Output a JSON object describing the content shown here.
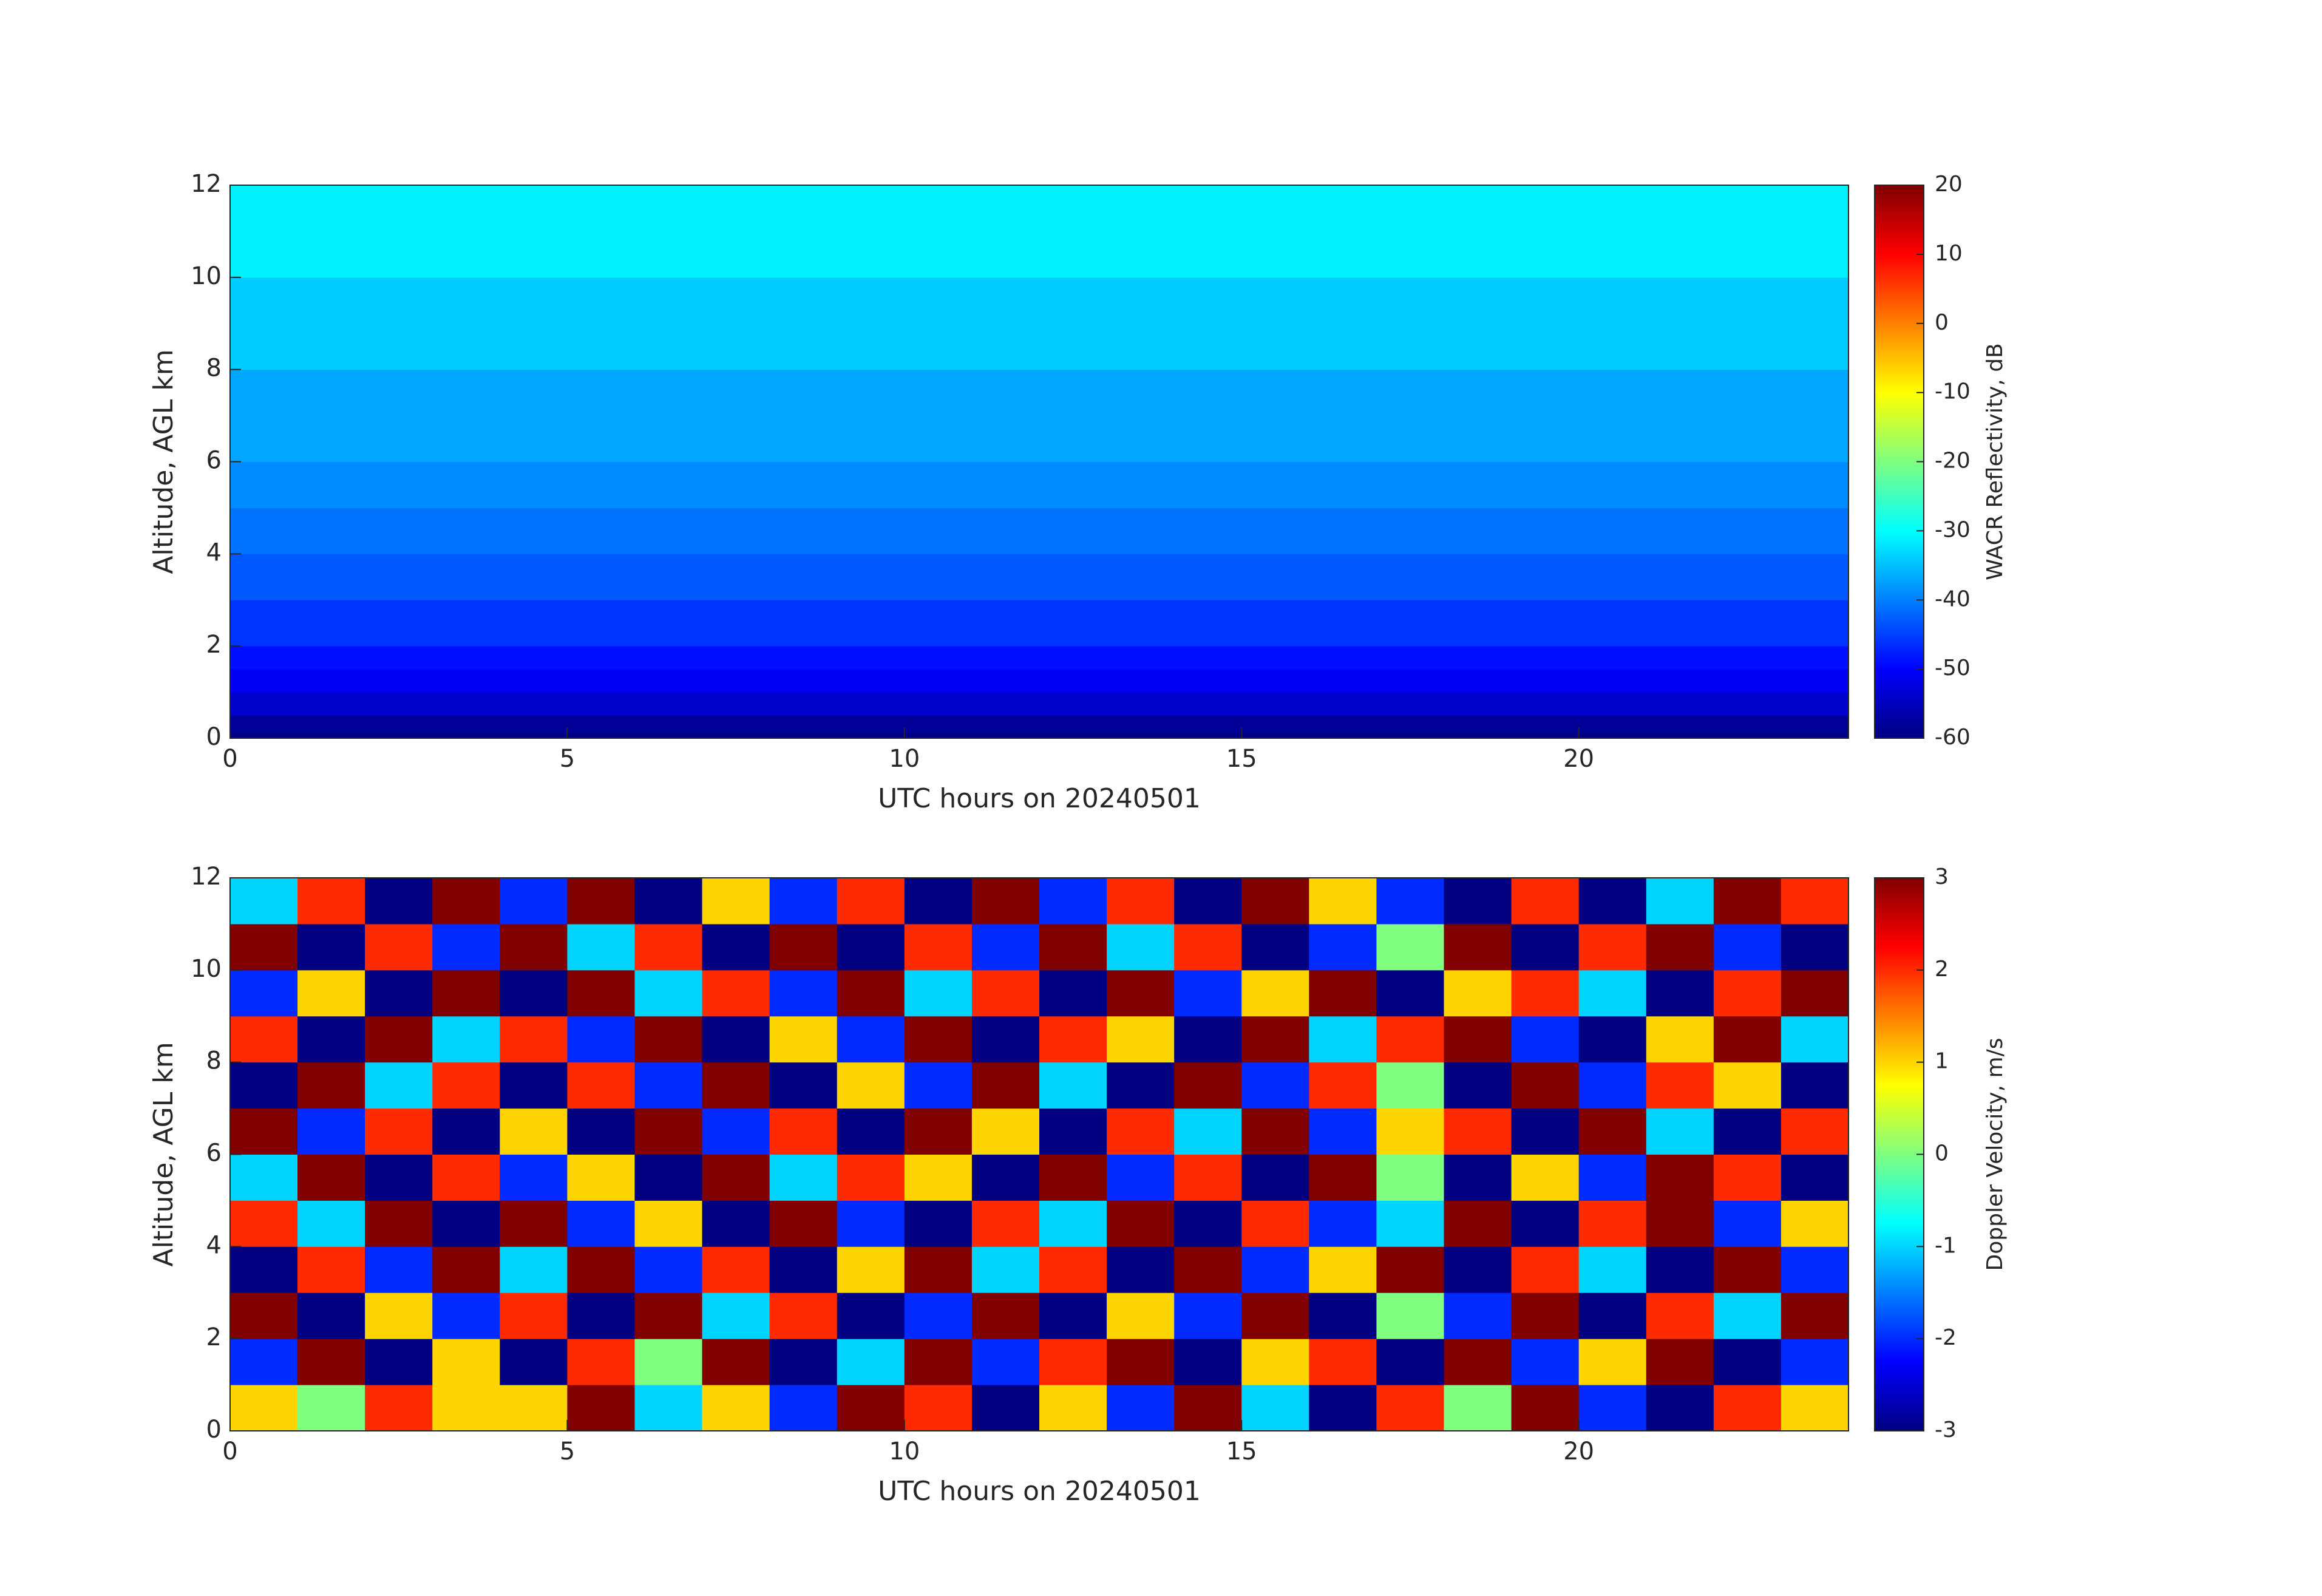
{
  "chart_data": [
    {
      "type": "heatmap",
      "colormap": "jet",
      "xlabel": "UTC hours on 20240501",
      "ylabel": "Altitude, AGL km",
      "xlim": [
        0,
        24
      ],
      "xticks": [
        0,
        5,
        10,
        15,
        20
      ],
      "ylim": [
        0,
        12
      ],
      "yticks": [
        0,
        2,
        4,
        6,
        8,
        10,
        12
      ],
      "x": [
        0,
        24
      ],
      "y": [
        0,
        0.12,
        0.5,
        1,
        1.5,
        2,
        3,
        4,
        5,
        6,
        8,
        10,
        12
      ],
      "values": [
        [
          -60
        ],
        [
          -58
        ],
        [
          -54
        ],
        [
          -51
        ],
        [
          -49
        ],
        [
          -46
        ],
        [
          -43
        ],
        [
          -41
        ],
        [
          -39
        ],
        [
          -37
        ],
        [
          -34
        ],
        [
          -31
        ]
      ],
      "colorbar": {
        "label": "WACR Reflectivity, dB",
        "clim": [
          -60,
          20
        ],
        "ticks": [
          -60,
          -50,
          -40,
          -30,
          -20,
          -10,
          0,
          10,
          20
        ]
      }
    },
    {
      "type": "heatmap",
      "colormap": "jet",
      "xlabel": "UTC hours on 20240501",
      "ylabel": "Altitude, AGL km",
      "xlim": [
        0,
        24
      ],
      "xticks": [
        0,
        5,
        10,
        15,
        20
      ],
      "ylim": [
        0,
        12
      ],
      "yticks": [
        0,
        2,
        4,
        6,
        8,
        10,
        12
      ],
      "x": [
        0,
        1,
        2,
        3,
        4,
        5,
        6,
        7,
        8,
        9,
        10,
        11,
        12,
        13,
        14,
        15,
        16,
        17,
        18,
        19,
        20,
        21,
        22,
        23,
        24
      ],
      "y": [
        0,
        1,
        2,
        3,
        4,
        5,
        6,
        7,
        8,
        9,
        10,
        11,
        12
      ],
      "values": [
        [
          1,
          0,
          2,
          1,
          1,
          3,
          -1,
          1,
          -2,
          3,
          2,
          -3,
          1,
          -2,
          3,
          -1,
          -3,
          2,
          0,
          3,
          -2,
          -3,
          2,
          1
        ],
        [
          -2,
          3,
          -3,
          1,
          -3,
          2,
          0,
          3,
          -3,
          -1,
          3,
          -2,
          2,
          3,
          -3,
          1,
          2,
          -3,
          3,
          -2,
          1,
          3,
          -3,
          -2
        ],
        [
          3,
          -3,
          1,
          -2,
          2,
          -3,
          3,
          -1,
          2,
          -3,
          -2,
          3,
          -3,
          1,
          -2,
          3,
          -3,
          0,
          -2,
          3,
          -3,
          2,
          -1,
          3
        ],
        [
          -3,
          2,
          -2,
          3,
          -1,
          3,
          -2,
          2,
          -3,
          1,
          3,
          -1,
          2,
          -3,
          3,
          -2,
          1,
          3,
          -3,
          2,
          -1,
          -3,
          3,
          -2
        ],
        [
          2,
          -1,
          3,
          -3,
          3,
          -2,
          1,
          -3,
          3,
          -2,
          -3,
          2,
          -1,
          3,
          -3,
          2,
          -2,
          -1,
          3,
          -3,
          2,
          3,
          -2,
          1
        ],
        [
          -1,
          3,
          -3,
          2,
          -2,
          1,
          -3,
          3,
          -1,
          2,
          1,
          -3,
          3,
          -2,
          2,
          -3,
          3,
          0,
          -3,
          1,
          -2,
          3,
          2,
          -3
        ],
        [
          3,
          -2,
          2,
          -3,
          1,
          -3,
          3,
          -2,
          2,
          -3,
          3,
          1,
          -3,
          2,
          -1,
          3,
          -2,
          1,
          2,
          -3,
          3,
          -1,
          -3,
          2
        ],
        [
          -3,
          3,
          -1,
          2,
          -3,
          2,
          -2,
          3,
          -3,
          1,
          -2,
          3,
          -1,
          -3,
          3,
          -2,
          2,
          0,
          -3,
          3,
          -2,
          2,
          1,
          -3
        ],
        [
          2,
          -3,
          3,
          -1,
          2,
          -2,
          3,
          -3,
          1,
          -2,
          3,
          -3,
          2,
          1,
          -3,
          3,
          -1,
          2,
          3,
          -2,
          -3,
          1,
          3,
          -1
        ],
        [
          -2,
          1,
          -3,
          3,
          -3,
          3,
          -1,
          2,
          -2,
          3,
          -1,
          2,
          -3,
          3,
          -2,
          1,
          3,
          -3,
          1,
          2,
          -1,
          -3,
          2,
          3
        ],
        [
          3,
          -3,
          2,
          -2,
          3,
          -1,
          2,
          -3,
          3,
          -3,
          2,
          -2,
          3,
          -1,
          2,
          -3,
          -2,
          0,
          3,
          -3,
          2,
          3,
          -2,
          -3
        ],
        [
          -1,
          2,
          -3,
          3,
          -2,
          3,
          -3,
          1,
          -2,
          2,
          -3,
          3,
          -2,
          2,
          -3,
          3,
          1,
          -2,
          -3,
          2,
          -3,
          -1,
          3,
          2
        ]
      ],
      "colorbar": {
        "label": "Doppler Velocity, m/s",
        "clim": [
          -3,
          3
        ],
        "ticks": [
          -3,
          -2,
          -1,
          0,
          1,
          2,
          3
        ]
      }
    }
  ]
}
